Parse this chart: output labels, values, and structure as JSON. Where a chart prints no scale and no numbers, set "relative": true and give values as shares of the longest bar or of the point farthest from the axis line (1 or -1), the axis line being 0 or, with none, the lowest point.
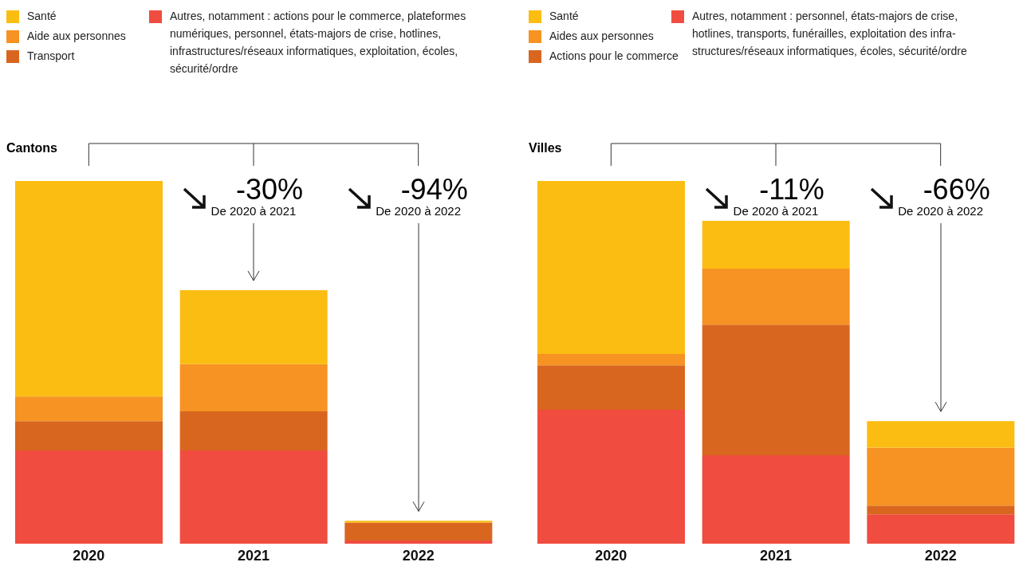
{
  "chart_data": [
    {
      "type": "bar",
      "title": "Cantons",
      "categories": [
        "2020",
        "2021",
        "2022"
      ],
      "stacked": true,
      "relative": true,
      "legend": "top",
      "tick_labels": "x",
      "annotations": [
        "-30%",
        "De 2020 à 2021",
        "-94%",
        "De 2020 à 2022"
      ],
      "series": [
        {
          "name": "Autres, notamment : actions pour le commerce, plateformes numériques, personnel, états-majors de crise, hotlines, infrastructures/réseaux informatiques, exploitation, écoles, sécurité/ordre",
          "color": "#f04c40",
          "values": [
            0.257,
            0.257,
            0.009
          ]
        },
        {
          "name": "Transport",
          "color": "#d9661f",
          "values": [
            0.081,
            0.108,
            0.048
          ]
        },
        {
          "name": "Aide aux personnes",
          "color": "#f69322",
          "values": [
            0.068,
            0.13,
            0.002
          ]
        },
        {
          "name": "Santé",
          "color": "#fbbd12",
          "values": [
            0.594,
            0.204,
            0.004
          ]
        }
      ]
    },
    {
      "type": "bar",
      "title": "Villes",
      "categories": [
        "2020",
        "2021",
        "2022"
      ],
      "stacked": true,
      "relative": true,
      "legend": "top",
      "tick_labels": "x",
      "annotations": [
        "-11%",
        "De 2020 à 2021",
        "-66%",
        "De 2020 à 2022"
      ],
      "series": [
        {
          "name": "Autres, notamment : personnel, états-majors de crise, hotlines, transports, funérailles, exploitation des infra-structures/réseaux informatiques, écoles, sécurité/ordre",
          "color": "#f04c40",
          "values": [
            0.369,
            0.244,
            0.081
          ]
        },
        {
          "name": "Actions pour le commerce",
          "color": "#d9661f",
          "values": [
            0.123,
            0.36,
            0.024
          ]
        },
        {
          "name": "Aides aux personnes",
          "color": "#f69322",
          "values": [
            0.031,
            0.154,
            0.16
          ]
        },
        {
          "name": "Santé",
          "color": "#fbbd12",
          "values": [
            0.477,
            0.132,
            0.073
          ]
        }
      ]
    }
  ]
}
